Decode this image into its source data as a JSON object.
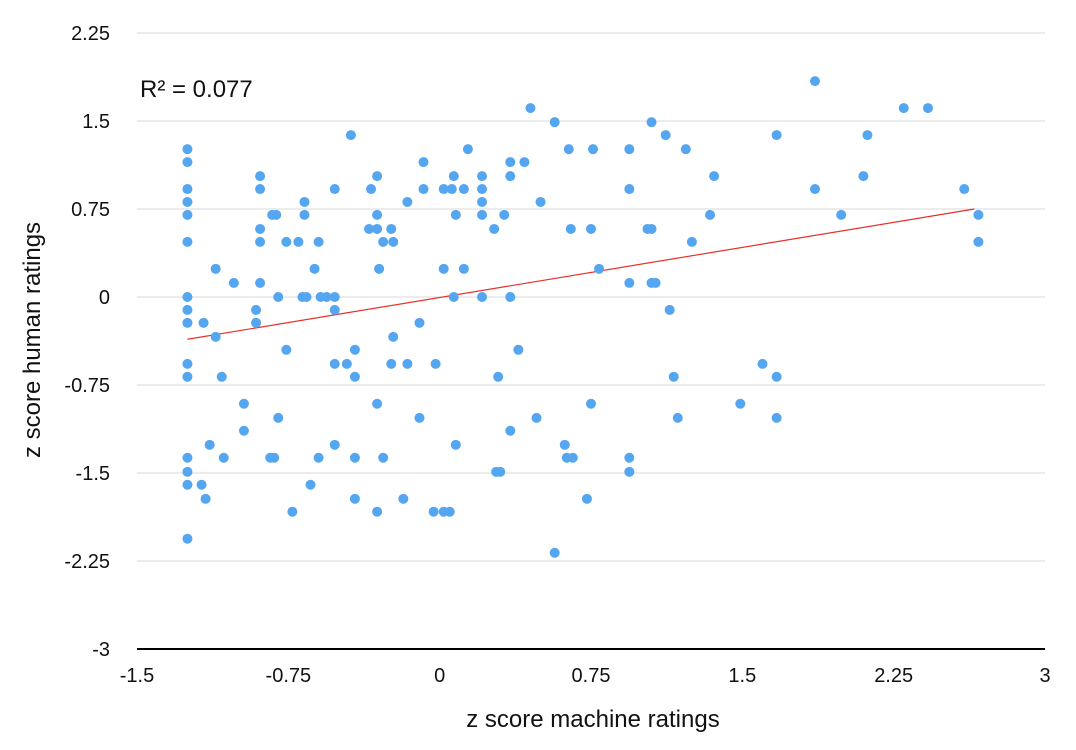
{
  "chart_data": {
    "type": "scatter",
    "xlabel": "z score machine ratings",
    "ylabel": "z score human ratings",
    "annotation": "R² = 0.077",
    "xlim": [
      -1.5,
      3
    ],
    "ylim": [
      -3,
      2.25
    ],
    "x_ticks": [
      "-1.5",
      "-0.75",
      "0",
      "0.75",
      "1.5",
      "2.25",
      "3"
    ],
    "y_ticks": [
      "2.25",
      "1.5",
      "0.75",
      "0",
      "-0.75",
      "-1.5",
      "-2.25",
      "-3"
    ],
    "grid": "horizontal",
    "colors": {
      "points": "#55a6f0",
      "trendline": "#e8302a",
      "grid": "#d9d9d9",
      "axis": "#000000"
    },
    "trendline": {
      "x": [
        -1.25,
        2.65
      ],
      "y": [
        -0.36,
        0.75
      ]
    },
    "points": [
      [
        -1.25,
        1.26
      ],
      [
        -1.25,
        1.15
      ],
      [
        -1.25,
        0.92
      ],
      [
        -1.25,
        0.81
      ],
      [
        -1.25,
        0.7
      ],
      [
        -1.25,
        0.47
      ],
      [
        -1.25,
        0.0
      ],
      [
        -1.25,
        -0.11
      ],
      [
        -1.25,
        -0.22
      ],
      [
        -1.25,
        -0.57
      ],
      [
        -1.25,
        -0.68
      ],
      [
        -1.25,
        -1.37
      ],
      [
        -1.25,
        -1.49
      ],
      [
        -1.25,
        -1.6
      ],
      [
        -1.25,
        -2.06
      ],
      [
        -1.17,
        -0.22
      ],
      [
        -1.18,
        -1.6
      ],
      [
        -1.16,
        -1.72
      ],
      [
        -1.14,
        -1.26
      ],
      [
        -1.11,
        -0.34
      ],
      [
        -1.11,
        0.24
      ],
      [
        -1.08,
        -0.68
      ],
      [
        -1.07,
        -1.37
      ],
      [
        -1.02,
        0.12
      ],
      [
        -0.97,
        -0.91
      ],
      [
        -0.97,
        -1.14
      ],
      [
        -0.91,
        -0.11
      ],
      [
        -0.91,
        -0.22
      ],
      [
        -0.89,
        1.03
      ],
      [
        -0.89,
        0.92
      ],
      [
        -0.89,
        0.58
      ],
      [
        -0.89,
        0.47
      ],
      [
        -0.89,
        0.12
      ],
      [
        -0.84,
        -1.37
      ],
      [
        -0.82,
        -1.37
      ],
      [
        -0.83,
        0.7
      ],
      [
        -0.81,
        0.7
      ],
      [
        -0.8,
        0.0
      ],
      [
        -0.8,
        -1.03
      ],
      [
        -0.76,
        0.47
      ],
      [
        -0.76,
        -0.45
      ],
      [
        -0.73,
        -1.83
      ],
      [
        -0.7,
        0.47
      ],
      [
        -0.68,
        0.0
      ],
      [
        -0.67,
        0.81
      ],
      [
        -0.67,
        0.7
      ],
      [
        -0.66,
        0.0
      ],
      [
        -0.64,
        -1.6
      ],
      [
        -0.62,
        0.24
      ],
      [
        -0.6,
        0.47
      ],
      [
        -0.6,
        -1.37
      ],
      [
        -0.59,
        0.0
      ],
      [
        -0.56,
        0.0
      ],
      [
        -0.52,
        0.92
      ],
      [
        -0.52,
        0.0
      ],
      [
        -0.52,
        -0.11
      ],
      [
        -0.52,
        -0.57
      ],
      [
        -0.52,
        -1.26
      ],
      [
        -0.46,
        -0.57
      ],
      [
        -0.44,
        1.38
      ],
      [
        -0.42,
        -0.45
      ],
      [
        -0.42,
        -0.68
      ],
      [
        -0.42,
        -1.37
      ],
      [
        -0.42,
        -1.72
      ],
      [
        -0.35,
        0.58
      ],
      [
        -0.34,
        0.92
      ],
      [
        -0.31,
        1.03
      ],
      [
        -0.31,
        0.7
      ],
      [
        -0.31,
        0.58
      ],
      [
        -0.3,
        0.24
      ],
      [
        -0.31,
        -0.91
      ],
      [
        -0.31,
        -1.83
      ],
      [
        -0.28,
        0.47
      ],
      [
        -0.28,
        -1.37
      ],
      [
        -0.24,
        0.58
      ],
      [
        -0.23,
        0.47
      ],
      [
        -0.23,
        -0.34
      ],
      [
        -0.24,
        -0.57
      ],
      [
        -0.18,
        -1.72
      ],
      [
        -0.16,
        0.81
      ],
      [
        -0.16,
        -0.57
      ],
      [
        -0.1,
        -0.22
      ],
      [
        -0.1,
        -1.03
      ],
      [
        -0.08,
        1.15
      ],
      [
        -0.08,
        0.92
      ],
      [
        -0.03,
        -1.83
      ],
      [
        -0.02,
        -0.57
      ],
      [
        0.02,
        0.92
      ],
      [
        0.02,
        0.24
      ],
      [
        0.02,
        -1.83
      ],
      [
        0.05,
        -1.83
      ],
      [
        0.06,
        0.92
      ],
      [
        0.07,
        1.03
      ],
      [
        0.07,
        0.0
      ],
      [
        0.08,
        0.7
      ],
      [
        0.08,
        -1.26
      ],
      [
        0.12,
        0.92
      ],
      [
        0.12,
        0.24
      ],
      [
        0.14,
        1.26
      ],
      [
        0.21,
        1.03
      ],
      [
        0.21,
        0.92
      ],
      [
        0.21,
        0.81
      ],
      [
        0.21,
        0.7
      ],
      [
        0.21,
        0.0
      ],
      [
        0.27,
        0.58
      ],
      [
        0.28,
        -1.49
      ],
      [
        0.3,
        -1.49
      ],
      [
        0.29,
        -0.68
      ],
      [
        0.32,
        0.7
      ],
      [
        0.35,
        1.15
      ],
      [
        0.35,
        1.03
      ],
      [
        0.35,
        0.0
      ],
      [
        0.35,
        -1.14
      ],
      [
        0.39,
        -0.45
      ],
      [
        0.42,
        1.15
      ],
      [
        0.45,
        1.61
      ],
      [
        0.48,
        -1.03
      ],
      [
        0.5,
        0.81
      ],
      [
        0.57,
        1.49
      ],
      [
        0.57,
        -2.18
      ],
      [
        0.62,
        -1.26
      ],
      [
        0.63,
        -1.37
      ],
      [
        0.64,
        1.26
      ],
      [
        0.65,
        0.58
      ],
      [
        0.66,
        -1.37
      ],
      [
        0.73,
        -1.72
      ],
      [
        0.76,
        1.26
      ],
      [
        0.75,
        0.58
      ],
      [
        0.75,
        -0.91
      ],
      [
        0.79,
        0.24
      ],
      [
        0.94,
        1.26
      ],
      [
        0.94,
        0.92
      ],
      [
        0.94,
        0.12
      ],
      [
        0.94,
        -1.37
      ],
      [
        0.94,
        -1.49
      ],
      [
        1.03,
        0.58
      ],
      [
        1.05,
        0.58
      ],
      [
        1.05,
        1.49
      ],
      [
        1.05,
        0.12
      ],
      [
        1.07,
        0.12
      ],
      [
        1.12,
        1.38
      ],
      [
        1.14,
        -0.11
      ],
      [
        1.16,
        -0.68
      ],
      [
        1.18,
        -1.03
      ],
      [
        1.22,
        1.26
      ],
      [
        1.25,
        0.47
      ],
      [
        1.34,
        0.7
      ],
      [
        1.36,
        1.03
      ],
      [
        1.49,
        -0.91
      ],
      [
        1.6,
        -0.57
      ],
      [
        1.67,
        1.38
      ],
      [
        1.67,
        -0.68
      ],
      [
        1.67,
        -1.03
      ],
      [
        1.86,
        1.84
      ],
      [
        1.86,
        0.92
      ],
      [
        1.99,
        0.7
      ],
      [
        2.1,
        1.03
      ],
      [
        2.12,
        1.38
      ],
      [
        2.3,
        1.61
      ],
      [
        2.42,
        1.61
      ],
      [
        2.6,
        0.92
      ],
      [
        2.67,
        0.7
      ],
      [
        2.67,
        0.47
      ]
    ]
  }
}
